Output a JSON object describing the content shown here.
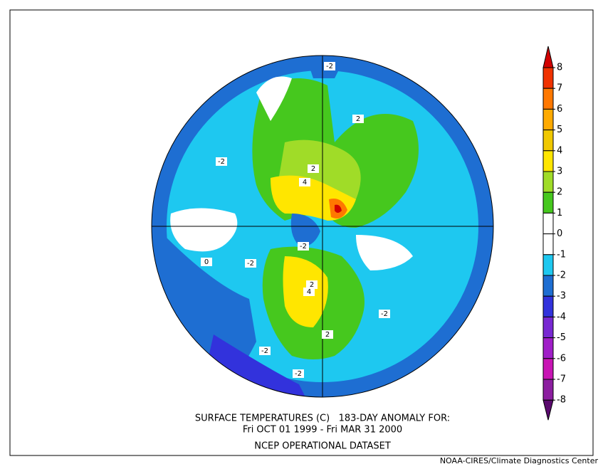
{
  "title": "SURFACE TEMPERATURES (C)   183-DAY ANOMALY FOR:",
  "period": "Fri OCT 01 1999 - Fri MAR 31 2000",
  "dataset": "NCEP OPERATIONAL DATASET",
  "credit": "NOAA-CIRES/Climate Diagnostics Center",
  "colorbar": {
    "ticks": [
      8,
      7,
      6,
      5,
      4,
      3,
      2,
      1,
      0,
      -1,
      -2,
      -3,
      -4,
      -5,
      -6,
      -7,
      -8
    ],
    "colors": [
      "#d20000",
      "#f03200",
      "#ff7800",
      "#ffaa00",
      "#f0c800",
      "#ffe600",
      "#a0dc28",
      "#46c81e",
      "#ffffff",
      "#ffffff",
      "#1ec8f0",
      "#1e6ed2",
      "#3232dc",
      "#7828d2",
      "#a01ec8",
      "#c814b4",
      "#8c1ea0",
      "#5a0a6e"
    ]
  },
  "contour_labels": [
    "-2",
    "-2",
    "-2",
    "-2",
    "-2",
    "-2",
    "2",
    "4",
    "-2",
    "2",
    "2",
    "4",
    "2",
    "0"
  ]
}
